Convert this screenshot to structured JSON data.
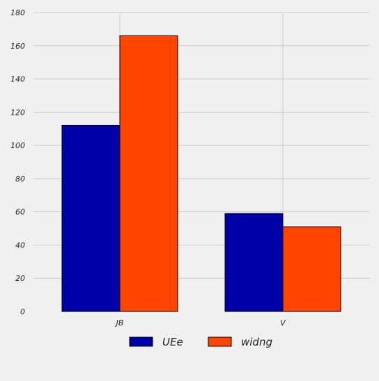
{
  "chart_data": {
    "type": "bar",
    "categories": [
      "JB",
      "V"
    ],
    "series": [
      {
        "name": "UEe",
        "values": [
          112,
          59
        ],
        "color": "#0000a8"
      },
      {
        "name": "widng",
        "values": [
          166,
          51
        ],
        "color": "#ff4500"
      }
    ],
    "ylim": [
      0,
      180
    ],
    "yticks": [
      "0",
      "20",
      "40",
      "60",
      "80",
      "100",
      "120",
      "140",
      "160",
      "180"
    ],
    "grid": true,
    "legend_position": "bottom-center",
    "title": "",
    "xlabel": "",
    "ylabel": ""
  },
  "colors": {
    "background": "#f0f0f0",
    "grid": "#cbcbcb",
    "bar_edge": "#000000"
  }
}
